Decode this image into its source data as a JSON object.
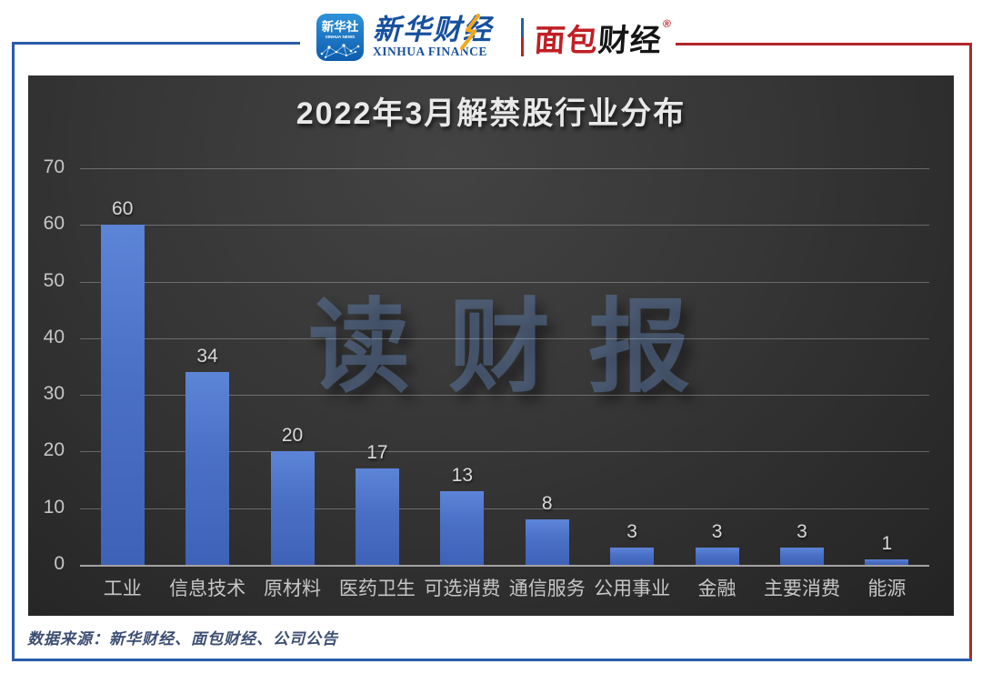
{
  "header": {
    "xinhua_news_badge": {
      "line1": "新华社",
      "line2": "XINHUA NEWS"
    },
    "xinhua_finance": {
      "cn": "新华财经",
      "en": "XINHUA FINANCE"
    },
    "mianbao": {
      "cn_red": "面包",
      "cn_black": "财经",
      "reg": "®"
    }
  },
  "chart_data": {
    "type": "bar",
    "title": "2022年3月解禁股行业分布",
    "categories": [
      "工业",
      "信息技术",
      "原材料",
      "医药卫生",
      "可选消费",
      "通信服务",
      "公用事业",
      "金融",
      "主要消费",
      "能源"
    ],
    "values": [
      60,
      34,
      20,
      17,
      13,
      8,
      3,
      3,
      3,
      1
    ],
    "yticks": [
      0,
      10,
      20,
      30,
      40,
      50,
      60,
      70
    ],
    "ylim": [
      0,
      70
    ],
    "grid": true,
    "legend": "none",
    "watermark": "读财报",
    "xlabel": "",
    "ylabel": ""
  },
  "footer": {
    "source": "数据来源：新华财经、面包财经、公司公告"
  },
  "colors": {
    "frame_blue": "#2a5caa",
    "frame_red": "#b2262b",
    "bar_blue": "#4a70c5",
    "logo_blue": "#17509e",
    "logo_red": "#c01f24",
    "bolt_yellow": "#f5a818",
    "source_text": "#3d4e73"
  }
}
